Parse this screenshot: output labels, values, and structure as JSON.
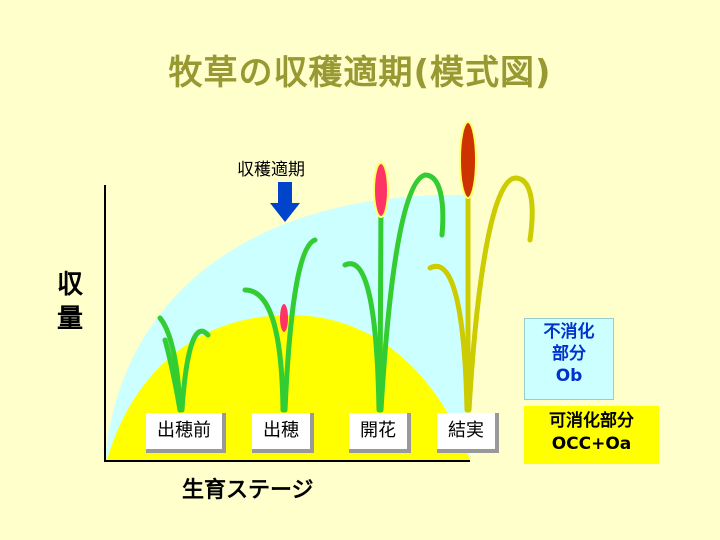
{
  "title": "牧草の収穫適期(模式図)",
  "y_axis_label": [
    "収",
    "量"
  ],
  "x_axis_label": "生育ステージ",
  "harvest_label": "収穫適期",
  "stages": [
    "出穂前",
    "出穂",
    "開花",
    "結実"
  ],
  "legend": {
    "undigestible": [
      "不消化",
      "部分",
      "Ob"
    ],
    "digestible": [
      "可消化部分",
      "OCC+Oa"
    ]
  },
  "colors": {
    "background": "#ffffcc",
    "title": "#999933",
    "undigestible_area": "#ccffff",
    "digestible_area": "#ffff00",
    "leaf_green": "#33cc33",
    "leaf_yellow": "#cccc00",
    "arrow": "#0044cc",
    "ear_pink": "#ff3366",
    "ear_red": "#cc3300"
  },
  "icons": [
    "down-arrow-icon"
  ]
}
